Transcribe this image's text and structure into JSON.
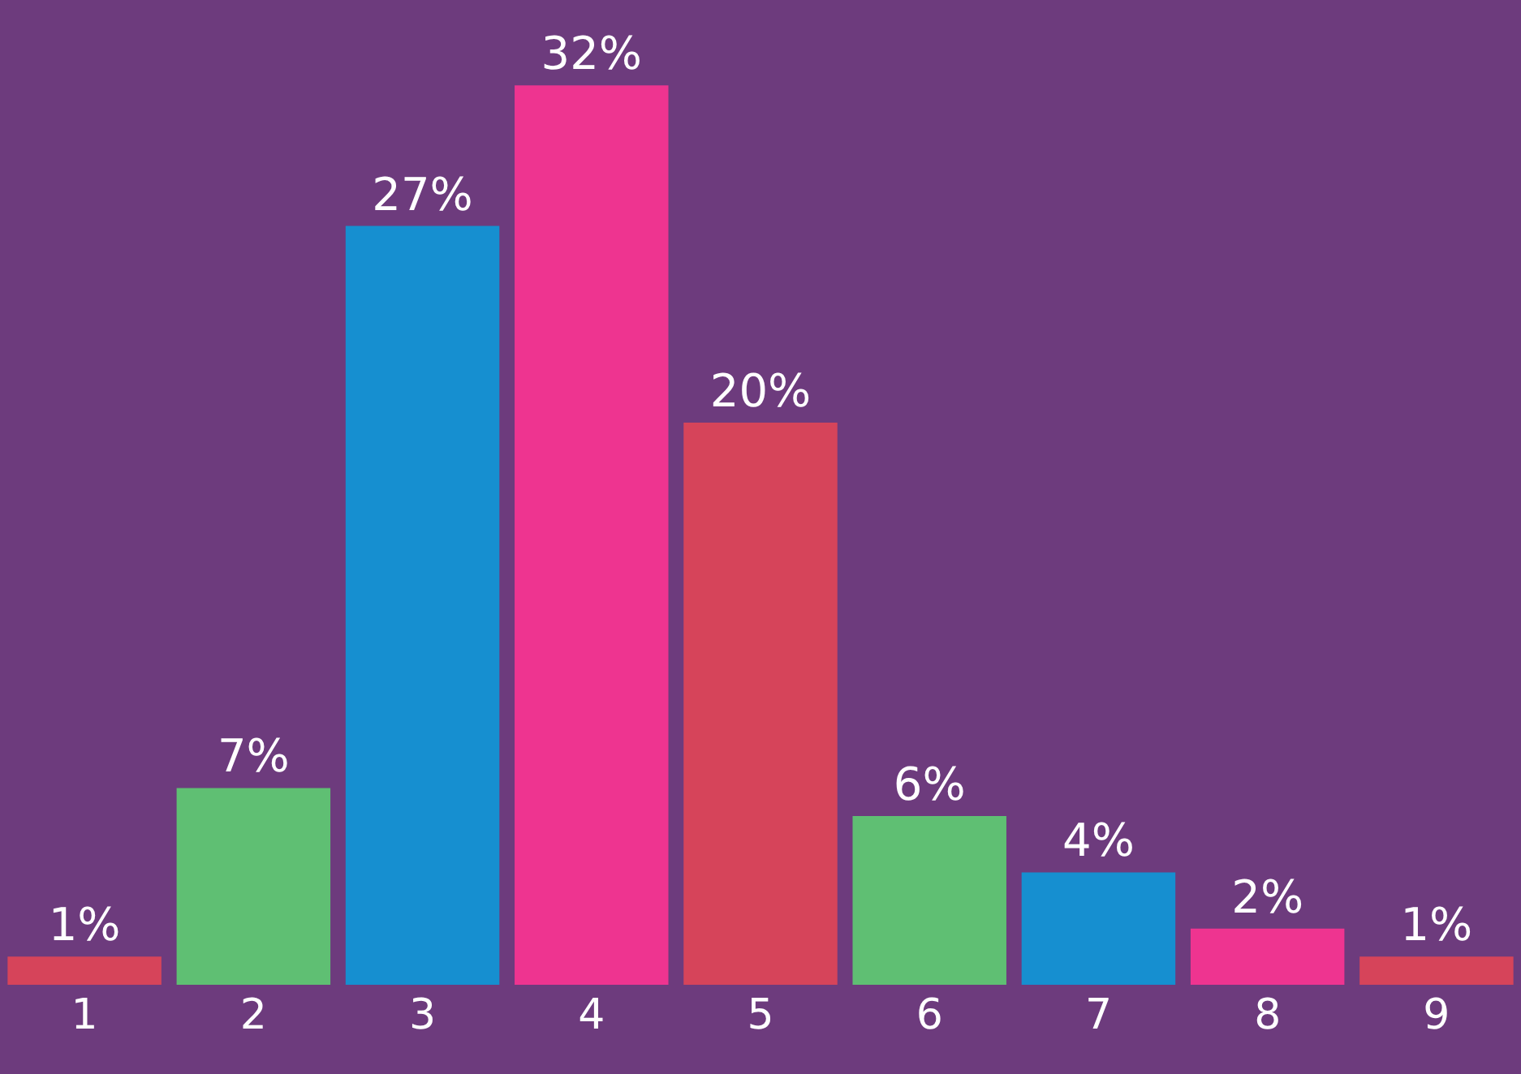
{
  "chart_data": {
    "type": "bar",
    "categories": [
      "1",
      "2",
      "3",
      "4",
      "5",
      "6",
      "7",
      "8",
      "9"
    ],
    "values": [
      1,
      7,
      27,
      32,
      20,
      6,
      4,
      2,
      1
    ],
    "value_labels": [
      "1%",
      "7%",
      "27%",
      "32%",
      "20%",
      "6%",
      "4%",
      "2%",
      "1%"
    ],
    "colors": [
      "#d6445a",
      "#5fbf73",
      "#168fd0",
      "#ee3490",
      "#d6445a",
      "#5fbf73",
      "#168fd0",
      "#ee3490",
      "#d6445a"
    ],
    "grid": false,
    "legend": false
  }
}
